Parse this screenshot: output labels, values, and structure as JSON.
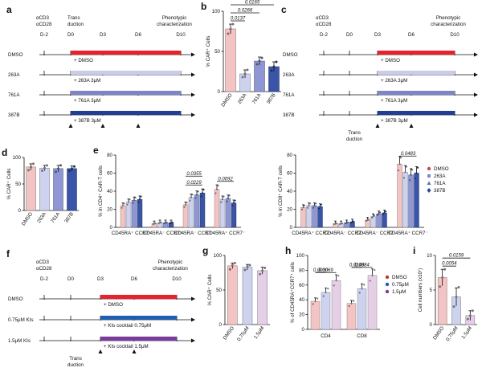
{
  "panels": {
    "a": {
      "letter": "a",
      "stim": [
        "αCD3",
        "αCD28"
      ],
      "transduction": [
        "Trans",
        "duction"
      ],
      "phenotypic": [
        "Phenotypic",
        "characterization"
      ],
      "days": [
        "D-2",
        "D0",
        "D3",
        "D6",
        "D10"
      ],
      "rows": [
        {
          "label": "DMSO",
          "treatment": "+ DMSO",
          "color": "#e8212a"
        },
        {
          "label": "263A",
          "treatment": "+ 263A 3μM",
          "color": "#c9cde9"
        },
        {
          "label": "761A",
          "treatment": "+ 761A 3μM",
          "color": "#7d84c8"
        },
        {
          "label": "387B",
          "treatment": "+ 387B 3μM",
          "color": "#1f3d99"
        }
      ]
    },
    "c": {
      "letter": "c",
      "stim": [
        "αCD3",
        "αCD28"
      ],
      "transduction": [
        "Trans",
        "duction"
      ],
      "phenotypic": [
        "Phenotypic",
        "characterization"
      ],
      "days": [
        "D-2",
        "D0",
        "D3",
        "D6",
        "D10"
      ],
      "rows": [
        {
          "label": "DMSO",
          "treatment": "+ DMSO",
          "color": "#e8212a"
        },
        {
          "label": "263A",
          "treatment": "+ 263A 3μM",
          "color": "#c9cde9"
        },
        {
          "label": "761A",
          "treatment": "+ 761A 3μM",
          "color": "#7d84c8"
        },
        {
          "label": "387B",
          "treatment": "+ 387B 3μM",
          "color": "#1f3d99"
        }
      ]
    },
    "f": {
      "letter": "f",
      "stim": [
        "αCD3",
        "αCD28"
      ],
      "transduction": [
        "Trans",
        "duction"
      ],
      "phenotypic": [
        "Phenotypic",
        "characterization"
      ],
      "days": [
        "D-2",
        "D0",
        "D3",
        "D6",
        "D10"
      ],
      "rows": [
        {
          "label": "DMSO",
          "treatment": "+ DMSO",
          "color": "#e8212a"
        },
        {
          "label": "0.75μM KIs",
          "treatment": "+ KIs cocktail 0.75μM",
          "color": "#1f5fb0"
        },
        {
          "label": "1.5μM KIs",
          "treatment": "+ KIs cocktail 1.5μM",
          "color": "#7c3a9c"
        }
      ]
    },
    "legend1": {
      "entries": [
        {
          "label": "DMSO",
          "color": "#c0504d",
          "shape": "circle"
        },
        {
          "label": "263A",
          "color": "#7f8ac7",
          "shape": "square"
        },
        {
          "label": "761A",
          "color": "#5b6cc2",
          "shape": "triangle"
        },
        {
          "label": "387B",
          "color": "#27449b",
          "shape": "diamond"
        }
      ]
    },
    "legend2": {
      "entries": [
        {
          "label": "DMSO",
          "color": "#c0392b"
        },
        {
          "label": "0.75μM",
          "color": "#1f5fb0"
        },
        {
          "label": "1.5μM",
          "color": "#7c3a9c"
        }
      ]
    }
  },
  "chart_data": [
    {
      "panel": "b",
      "letter": "b",
      "type": "bar",
      "ylabel": "% CAR⁺ Cells",
      "ylim": [
        0,
        100
      ],
      "yticks": [
        0,
        50,
        100
      ],
      "categories": [
        "DMSO",
        "263A",
        "761A",
        "387B"
      ],
      "values": [
        78,
        22,
        38,
        31
      ],
      "errors": [
        6,
        5,
        5,
        6
      ],
      "colors": [
        "#f2c4c4",
        "#cdd2ee",
        "#8e97d3",
        "#3a55a8"
      ],
      "points": [
        [
          72,
          78,
          84
        ],
        [
          18,
          22,
          27
        ],
        [
          34,
          38,
          42
        ],
        [
          26,
          31,
          37
        ]
      ],
      "comparisons": [
        {
          "from": 0,
          "to": 1,
          "p": "0.0137"
        },
        {
          "from": 0,
          "to": 2,
          "p": "0.0266"
        },
        {
          "from": 0,
          "to": 3,
          "p": "0.0165"
        }
      ]
    },
    {
      "panel": "d",
      "letter": "d",
      "type": "bar",
      "ylabel": "% CAR⁺ Cells",
      "ylim": [
        0,
        100
      ],
      "yticks": [
        0,
        50,
        100
      ],
      "categories": [
        "DMSO",
        "263A",
        "761A",
        "387B"
      ],
      "values": [
        82,
        80,
        79,
        79
      ],
      "errors": [
        6,
        5,
        6,
        5
      ],
      "colors": [
        "#f2c4c4",
        "#cdd2ee",
        "#8e97d3",
        "#3a55a8"
      ],
      "points": [
        [
          76,
          82,
          88
        ],
        [
          75,
          80,
          85
        ],
        [
          73,
          79,
          85
        ],
        [
          75,
          79,
          83
        ]
      ],
      "comparisons": []
    },
    {
      "panel": "e1",
      "letter": "e",
      "type": "bar",
      "ylabel": "% in CD4⁺ CAR-T cells",
      "ylim": [
        0,
        80
      ],
      "yticks": [
        0,
        20,
        40,
        60,
        80
      ],
      "categories": [
        "CD45RA⁺ CCR7⁺",
        "CD45RA⁻ CCR7⁺",
        "CD45RA⁻ CCR7⁻",
        "CD45RA⁺ CCR7⁻"
      ],
      "series": [
        {
          "name": "DMSO",
          "values": [
            24,
            4,
            25,
            42
          ],
          "color": "#f2c4c4"
        },
        {
          "name": "263A",
          "values": [
            28,
            5,
            33,
            31
          ],
          "color": "#cdd2ee"
        },
        {
          "name": "761A",
          "values": [
            30,
            5,
            36,
            32
          ],
          "color": "#8e97d3"
        },
        {
          "name": "387B",
          "values": [
            31,
            5,
            38,
            27
          ],
          "color": "#3a55a8"
        }
      ],
      "comparisons": [
        {
          "group": 2,
          "from": 0,
          "to": 3,
          "p": "0.0229"
        },
        {
          "group": 2,
          "from": 0,
          "to": 3,
          "p": "0.0355",
          "level": 2
        },
        {
          "group": 3,
          "from": 0,
          "to": 3,
          "p": "0.0092"
        }
      ]
    },
    {
      "panel": "e2",
      "letter": "",
      "type": "bar",
      "ylabel": "% in CD8⁺ CAR-T cells",
      "ylim": [
        0,
        80
      ],
      "yticks": [
        0,
        20,
        40,
        60,
        80
      ],
      "categories": [
        "CD45RA⁺ CCR7⁺",
        "CD45RA⁻ CCR7⁺",
        "CD45RA⁻ CCR7⁻",
        "CD45RA⁺ CCR7⁻"
      ],
      "series": [
        {
          "name": "DMSO",
          "values": [
            22,
            4,
            8,
            70
          ],
          "color": "#f2c4c4"
        },
        {
          "name": "263A",
          "values": [
            24,
            4,
            12,
            61
          ],
          "color": "#cdd2ee"
        },
        {
          "name": "761A",
          "values": [
            24,
            5,
            15,
            58
          ],
          "color": "#8e97d3"
        },
        {
          "name": "387B",
          "values": [
            23,
            6,
            16,
            60
          ],
          "color": "#3a55a8"
        }
      ],
      "comparisons": [
        {
          "group": 3,
          "from": 0,
          "to": 3,
          "p": "0.0483"
        }
      ]
    },
    {
      "panel": "g",
      "letter": "g",
      "type": "bar",
      "ylabel": "% CAR⁺ Cells",
      "ylim": [
        0,
        100
      ],
      "yticks": [
        0,
        50,
        100
      ],
      "categories": [
        "DMSO",
        "0.75μM",
        "1.5μM"
      ],
      "values": [
        85,
        83,
        78
      ],
      "errors": [
        4,
        4,
        5
      ],
      "colors": [
        "#f2c4c4",
        "#cdd2ee",
        "#e4cfe6"
      ],
      "points": [
        [
          80,
          86,
          89
        ],
        [
          79,
          84,
          86
        ],
        [
          73,
          78,
          82
        ]
      ],
      "comparisons": []
    },
    {
      "panel": "h",
      "letter": "h",
      "type": "bar",
      "ylabel": "% of CD45RA⁺CCR7⁺ cells",
      "ylim": [
        0,
        100
      ],
      "yticks": [
        0,
        20,
        40,
        60,
        80,
        100
      ],
      "categories": [
        "CD4",
        "CD8"
      ],
      "series": [
        {
          "name": "DMSO",
          "values": [
            38,
            35
          ],
          "color": "#f2c4c4"
        },
        {
          "name": "0.75μM",
          "values": [
            50,
            55
          ],
          "color": "#cdd2ee"
        },
        {
          "name": "1.5μM",
          "values": [
            66,
            73
          ],
          "color": "#e4cfe6"
        }
      ],
      "comparisons": [
        {
          "group": 0,
          "from": 0,
          "to": 1,
          "p": "0.0030"
        },
        {
          "group": 0,
          "from": 0,
          "to": 2,
          "p": "0.0069"
        },
        {
          "group": 1,
          "from": 0,
          "to": 1,
          "p": "0.0148"
        },
        {
          "group": 1,
          "from": 0,
          "to": 2,
          "p": "0.0084"
        }
      ]
    },
    {
      "panel": "i",
      "letter": "i",
      "type": "bar",
      "ylabel": "Cell numbers (x10⁷)",
      "ylim": [
        0,
        10
      ],
      "yticks": [
        0,
        5,
        10
      ],
      "categories": [
        "DMSO",
        "0.75μM",
        "1.5μM"
      ],
      "values": [
        6.8,
        4.0,
        1.3
      ],
      "errors": [
        1.2,
        1.3,
        0.7
      ],
      "colors": [
        "#f2c4c4",
        "#cdd2ee",
        "#e4cfe6"
      ],
      "points": [
        [
          5.5,
          6.8,
          8.0
        ],
        [
          2.6,
          4.0,
          5.4
        ],
        [
          0.8,
          1.3,
          2.0
        ]
      ],
      "comparisons": [
        {
          "from": 0,
          "to": 1,
          "p": "0.0054"
        },
        {
          "from": 0,
          "to": 2,
          "p": "0.0159"
        }
      ]
    }
  ]
}
